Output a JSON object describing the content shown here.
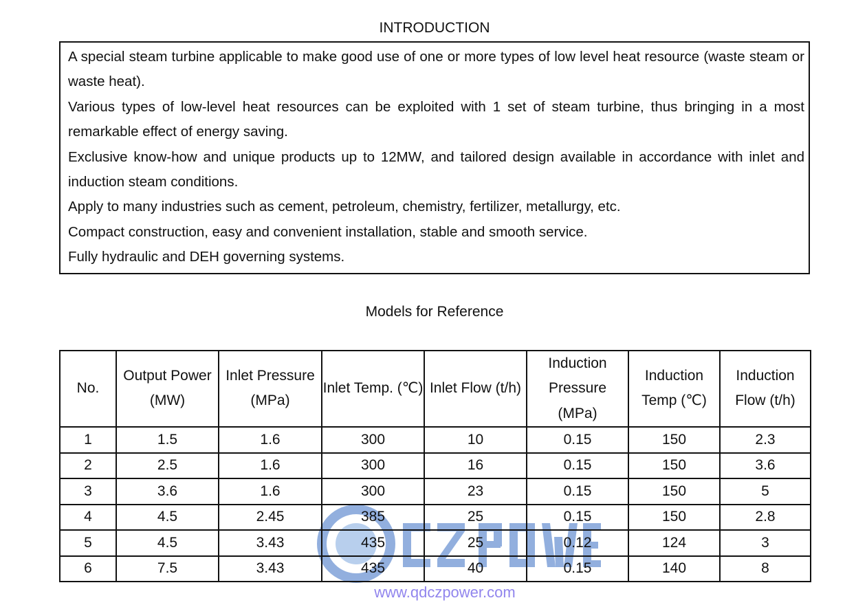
{
  "intro": {
    "title": "INTRODUCTION",
    "paragraphs": [
      "A special steam turbine applicable to make good use of one or more types of low level heat resource (waste steam or waste heat).",
      "Various types of low-level heat resources can be exploited with 1 set of steam turbine, thus bringing in a most remarkable effect of energy saving.",
      "Exclusive know-how and unique products up to 12MW, and tailored design available in accordance with inlet and induction steam conditions.",
      "Apply to many industries such as cement, petroleum, chemistry, fertilizer, metallurgy, etc.",
      "Compact construction, easy and convenient installation, stable and smooth service.",
      "Fully hydraulic and DEH governing systems."
    ]
  },
  "models": {
    "title": "Models for Reference",
    "headers": [
      "No.",
      "Output Power (MW)",
      "Inlet Pressure (MPa)",
      "Inlet Temp. (℃)",
      "Inlet Flow (t/h)",
      "Induction Pressure (MPa)",
      "Induction Temp (℃)",
      "Induction Flow (t/h)"
    ],
    "rows": [
      [
        "1",
        "1.5",
        "1.6",
        "300",
        "10",
        "0.15",
        "150",
        "2.3"
      ],
      [
        "2",
        "2.5",
        "1.6",
        "300",
        "16",
        "0.15",
        "150",
        "3.6"
      ],
      [
        "3",
        "3.6",
        "1.6",
        "300",
        "23",
        "0.15",
        "150",
        "5"
      ],
      [
        "4",
        "4.5",
        "2.45",
        "385",
        "25",
        "0.15",
        "150",
        "2.8"
      ],
      [
        "5",
        "4.5",
        "3.43",
        "435",
        "25",
        "0.12",
        "124",
        "3"
      ],
      [
        "6",
        "7.5",
        "3.43",
        "435",
        "40",
        "0.15",
        "140",
        "8"
      ]
    ]
  },
  "watermark": {
    "brand": "CZ POWER",
    "url": "www.qdczpower.com",
    "color": "#3a6fc4"
  }
}
